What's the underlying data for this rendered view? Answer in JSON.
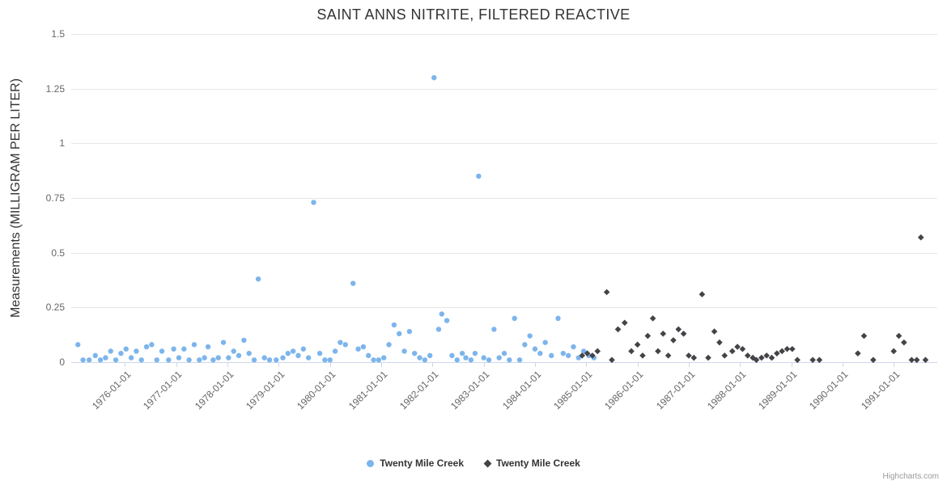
{
  "credit": "Highcharts.com",
  "chart_data": {
    "type": "scatter",
    "title": "SAINT ANNS NITRITE, FILTERED REACTIVE",
    "xlabel": "",
    "ylabel": "Measurements (MILLIGRAM PER LITER)",
    "ylim": [
      0,
      1.5
    ],
    "y_ticks": [
      0,
      0.25,
      0.5,
      0.75,
      1,
      1.25,
      1.5
    ],
    "y_tick_labels": [
      "0",
      "0.25",
      "0.5",
      "0.75",
      "1",
      "1.25",
      "1.5"
    ],
    "x_tick_years": [
      1976,
      1977,
      1978,
      1979,
      1980,
      1981,
      1982,
      1983,
      1984,
      1985,
      1986,
      1987,
      1988,
      1989,
      1990,
      1991
    ],
    "x_tick_labels": [
      "1976-01-01",
      "1977-01-01",
      "1978-01-01",
      "1979-01-01",
      "1980-01-01",
      "1981-01-01",
      "1982-01-01",
      "1983-01-01",
      "1984-01-01",
      "1985-01-01",
      "1986-01-01",
      "1987-01-01",
      "1988-01-01",
      "1989-01-01",
      "1990-01-01",
      "1991-01-01"
    ],
    "xlim_years": [
      1974.95,
      1991.85
    ],
    "grid": "horizontal",
    "grid_color": "#e6e6e6",
    "axis_line_color": "#ccd6eb",
    "legend_position": "bottom-center",
    "series": [
      {
        "name": "Twenty Mile Creek",
        "color": "#7cb5ec",
        "marker": "circle",
        "points": [
          [
            1975.08,
            0.08
          ],
          [
            1975.18,
            0.01
          ],
          [
            1975.3,
            0.01
          ],
          [
            1975.42,
            0.03
          ],
          [
            1975.52,
            0.01
          ],
          [
            1975.62,
            0.02
          ],
          [
            1975.72,
            0.05
          ],
          [
            1975.82,
            0.01
          ],
          [
            1975.92,
            0.04
          ],
          [
            1976.02,
            0.06
          ],
          [
            1976.12,
            0.02
          ],
          [
            1976.22,
            0.05
          ],
          [
            1976.32,
            0.01
          ],
          [
            1976.42,
            0.07
          ],
          [
            1976.52,
            0.08
          ],
          [
            1976.62,
            0.01
          ],
          [
            1976.72,
            0.05
          ],
          [
            1976.85,
            0.01
          ],
          [
            1976.95,
            0.06
          ],
          [
            1977.05,
            0.02
          ],
          [
            1977.15,
            0.06
          ],
          [
            1977.25,
            0.01
          ],
          [
            1977.35,
            0.08
          ],
          [
            1977.45,
            0.01
          ],
          [
            1977.55,
            0.02
          ],
          [
            1977.62,
            0.07
          ],
          [
            1977.72,
            0.01
          ],
          [
            1977.82,
            0.02
          ],
          [
            1977.92,
            0.09
          ],
          [
            1978.02,
            0.02
          ],
          [
            1978.12,
            0.05
          ],
          [
            1978.22,
            0.03
          ],
          [
            1978.32,
            0.1
          ],
          [
            1978.42,
            0.04
          ],
          [
            1978.52,
            0.01
          ],
          [
            1978.6,
            0.38
          ],
          [
            1978.72,
            0.02
          ],
          [
            1978.82,
            0.01
          ],
          [
            1978.95,
            0.01
          ],
          [
            1979.08,
            0.02
          ],
          [
            1979.18,
            0.04
          ],
          [
            1979.28,
            0.05
          ],
          [
            1979.38,
            0.03
          ],
          [
            1979.48,
            0.06
          ],
          [
            1979.58,
            0.02
          ],
          [
            1979.68,
            0.73
          ],
          [
            1979.8,
            0.04
          ],
          [
            1979.9,
            0.01
          ],
          [
            1980.0,
            0.01
          ],
          [
            1980.1,
            0.05
          ],
          [
            1980.2,
            0.09
          ],
          [
            1980.3,
            0.08
          ],
          [
            1980.45,
            0.36
          ],
          [
            1980.55,
            0.06
          ],
          [
            1980.65,
            0.07
          ],
          [
            1980.75,
            0.03
          ],
          [
            1980.85,
            0.01
          ],
          [
            1980.95,
            0.01
          ],
          [
            1981.05,
            0.02
          ],
          [
            1981.15,
            0.08
          ],
          [
            1981.25,
            0.17
          ],
          [
            1981.35,
            0.13
          ],
          [
            1981.45,
            0.05
          ],
          [
            1981.55,
            0.14
          ],
          [
            1981.65,
            0.04
          ],
          [
            1981.75,
            0.02
          ],
          [
            1981.85,
            0.01
          ],
          [
            1981.95,
            0.03
          ],
          [
            1982.03,
            1.3
          ],
          [
            1982.12,
            0.15
          ],
          [
            1982.18,
            0.22
          ],
          [
            1982.28,
            0.19
          ],
          [
            1982.38,
            0.03
          ],
          [
            1982.48,
            0.01
          ],
          [
            1982.58,
            0.04
          ],
          [
            1982.65,
            0.02
          ],
          [
            1982.75,
            0.01
          ],
          [
            1982.83,
            0.04
          ],
          [
            1982.9,
            0.85
          ],
          [
            1983.0,
            0.02
          ],
          [
            1983.1,
            0.01
          ],
          [
            1983.2,
            0.15
          ],
          [
            1983.3,
            0.02
          ],
          [
            1983.4,
            0.04
          ],
          [
            1983.5,
            0.01
          ],
          [
            1983.6,
            0.2
          ],
          [
            1983.7,
            0.01
          ],
          [
            1983.8,
            0.08
          ],
          [
            1983.9,
            0.12
          ],
          [
            1984.0,
            0.06
          ],
          [
            1984.1,
            0.04
          ],
          [
            1984.2,
            0.09
          ],
          [
            1984.32,
            0.03
          ],
          [
            1984.45,
            0.2
          ],
          [
            1984.55,
            0.04
          ],
          [
            1984.65,
            0.03
          ],
          [
            1984.75,
            0.07
          ],
          [
            1984.85,
            0.02
          ],
          [
            1984.95,
            0.05
          ],
          [
            1985.05,
            0.03
          ],
          [
            1985.15,
            0.02
          ]
        ]
      },
      {
        "name": "Twenty Mile Creek",
        "color": "#434348",
        "marker": "diamond",
        "points": [
          [
            1984.92,
            0.03
          ],
          [
            1985.02,
            0.04
          ],
          [
            1985.12,
            0.03
          ],
          [
            1985.22,
            0.05
          ],
          [
            1985.4,
            0.32
          ],
          [
            1985.5,
            0.01
          ],
          [
            1985.62,
            0.15
          ],
          [
            1985.75,
            0.18
          ],
          [
            1985.88,
            0.05
          ],
          [
            1986.0,
            0.08
          ],
          [
            1986.1,
            0.03
          ],
          [
            1986.2,
            0.12
          ],
          [
            1986.3,
            0.2
          ],
          [
            1986.4,
            0.05
          ],
          [
            1986.5,
            0.13
          ],
          [
            1986.6,
            0.03
          ],
          [
            1986.7,
            0.1
          ],
          [
            1986.8,
            0.15
          ],
          [
            1986.9,
            0.13
          ],
          [
            1987.0,
            0.03
          ],
          [
            1987.1,
            0.02
          ],
          [
            1987.26,
            0.31
          ],
          [
            1987.38,
            0.02
          ],
          [
            1987.5,
            0.14
          ],
          [
            1987.6,
            0.09
          ],
          [
            1987.7,
            0.03
          ],
          [
            1987.85,
            0.05
          ],
          [
            1987.95,
            0.07
          ],
          [
            1988.05,
            0.06
          ],
          [
            1988.15,
            0.03
          ],
          [
            1988.25,
            0.02
          ],
          [
            1988.32,
            0.01
          ],
          [
            1988.42,
            0.02
          ],
          [
            1988.52,
            0.03
          ],
          [
            1988.62,
            0.02
          ],
          [
            1988.72,
            0.04
          ],
          [
            1988.82,
            0.05
          ],
          [
            1988.92,
            0.06
          ],
          [
            1989.02,
            0.06
          ],
          [
            1989.12,
            0.01
          ],
          [
            1989.42,
            0.01
          ],
          [
            1989.55,
            0.01
          ],
          [
            1990.3,
            0.04
          ],
          [
            1990.42,
            0.12
          ],
          [
            1990.6,
            0.01
          ],
          [
            1991.0,
            0.05
          ],
          [
            1991.1,
            0.12
          ],
          [
            1991.2,
            0.09
          ],
          [
            1991.35,
            0.01
          ],
          [
            1991.45,
            0.01
          ],
          [
            1991.53,
            0.57
          ],
          [
            1991.62,
            0.01
          ]
        ]
      }
    ]
  }
}
